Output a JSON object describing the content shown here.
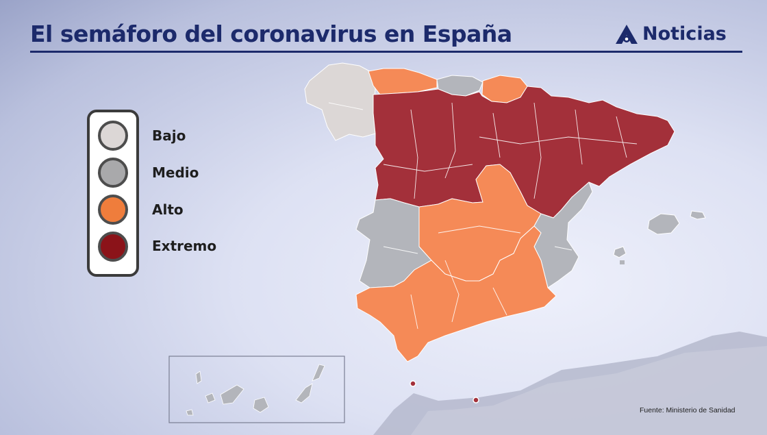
{
  "header": {
    "title": "El semáforo del coronavirus en España",
    "brand": "Noticias",
    "brand_icon": "antena3-logo-icon"
  },
  "legend": {
    "items": [
      {
        "label": "Bajo",
        "color": "#dcd7d6"
      },
      {
        "label": "Medio",
        "color": "#a9a9ab"
      },
      {
        "label": "Alto",
        "color": "#ef7d3c"
      },
      {
        "label": "Extremo",
        "color": "#8b1319"
      }
    ]
  },
  "map_colors": {
    "bajo": "#dcd7d6",
    "medio": "#b3b5bb",
    "alto": "#f58a57",
    "extremo": "#a3303a",
    "dot": "#a3303a",
    "africa": "#b5b9cc"
  },
  "footer": {
    "source": "Fuente: Ministerio de Sanidad"
  }
}
